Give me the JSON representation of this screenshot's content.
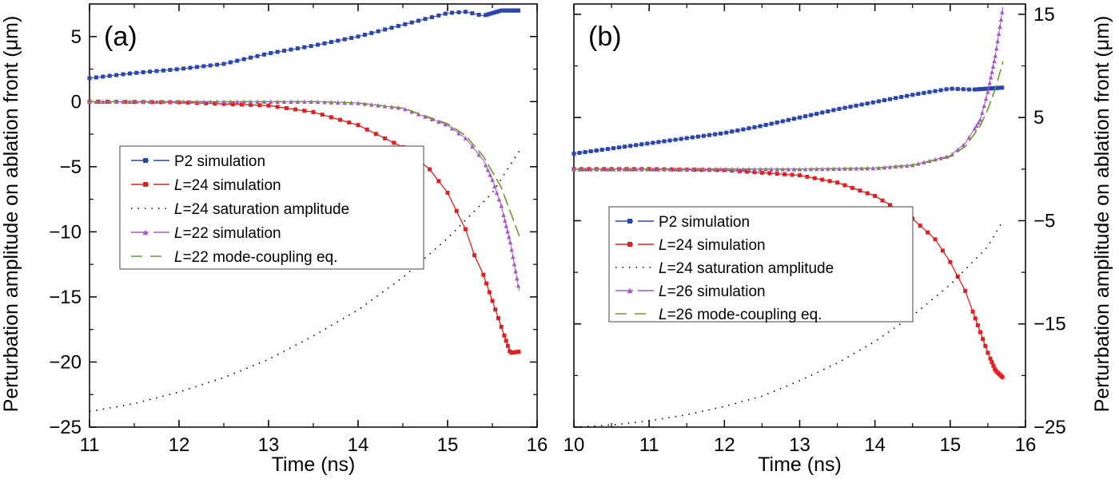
{
  "figure": {
    "ylabel_left": "Perturbation amplitude on ablation front (μm)",
    "ylabel_right": "Perturbation amplitude on ablation front (μm)"
  },
  "chart_data": [
    {
      "type": "line",
      "panel_label": "(a)",
      "xlabel": "Time (ns)",
      "xlim": [
        11,
        16
      ],
      "ylim": [
        -25,
        7.5
      ],
      "xticks": [
        11,
        12,
        13,
        14,
        15,
        16
      ],
      "yticks": [
        5,
        0,
        -5,
        -10,
        -15,
        -20,
        -25
      ],
      "ytick_labels": [
        "5",
        "0",
        "−5",
        "−10",
        "−15",
        "−20",
        "−25"
      ],
      "y_axis_side": "left",
      "legend": "middle-left",
      "series": [
        {
          "name": "P2 simulation",
          "color": "#2b45b0",
          "style": "dash-square",
          "x": [
            11.0,
            11.5,
            12.0,
            12.5,
            13.0,
            13.5,
            14.0,
            14.5,
            15.0,
            15.2,
            15.4,
            15.6,
            15.8
          ],
          "y": [
            1.8,
            2.2,
            2.5,
            2.9,
            3.7,
            4.3,
            5.0,
            5.9,
            6.8,
            6.9,
            6.6,
            7.0,
            7.0
          ]
        },
        {
          "name": "L=24 simulation",
          "color": "#e02020",
          "style": "solid-square",
          "x": [
            11.0,
            12.0,
            13.0,
            13.5,
            14.0,
            14.5,
            14.8,
            15.0,
            15.2,
            15.3,
            15.4,
            15.5,
            15.6,
            15.7,
            15.8
          ],
          "y": [
            0.0,
            -0.05,
            -0.3,
            -0.8,
            -1.8,
            -3.5,
            -5.2,
            -7.0,
            -9.8,
            -11.8,
            -13.3,
            -15.3,
            -17.3,
            -19.3,
            -19.2
          ]
        },
        {
          "name": "L=24 saturation amplitude",
          "color": "#000000",
          "style": "dotted",
          "x": [
            11.0,
            11.5,
            12.0,
            12.5,
            13.0,
            13.5,
            14.0,
            14.5,
            15.0,
            15.5,
            15.8
          ],
          "y": [
            -23.8,
            -23.2,
            -22.3,
            -21.2,
            -19.8,
            -18.0,
            -16.0,
            -13.5,
            -10.5,
            -7.0,
            -3.8
          ]
        },
        {
          "name": "L=22 simulation",
          "color": "#a855c8",
          "style": "dash-triangle",
          "x": [
            11.0,
            12.0,
            13.0,
            13.5,
            14.0,
            14.5,
            15.0,
            15.2,
            15.4,
            15.5,
            15.6,
            15.7,
            15.8
          ],
          "y": [
            0.0,
            0.0,
            0.0,
            0.0,
            -0.1,
            -0.5,
            -1.8,
            -2.8,
            -4.5,
            -6.0,
            -8.0,
            -10.8,
            -14.5
          ]
        },
        {
          "name": "L=22 mode-coupling eq.",
          "color": "#6a9a2a",
          "style": "dashed",
          "x": [
            11.0,
            12.0,
            13.0,
            13.5,
            14.0,
            14.5,
            15.0,
            15.2,
            15.4,
            15.6,
            15.8
          ],
          "y": [
            0.0,
            0.0,
            0.0,
            0.0,
            -0.1,
            -0.5,
            -1.7,
            -2.6,
            -4.2,
            -6.6,
            -10.3
          ]
        }
      ]
    },
    {
      "type": "line",
      "panel_label": "(b)",
      "xlabel": "Time (ns)",
      "xlim": [
        10,
        16
      ],
      "ylim": [
        -25,
        16
      ],
      "xticks": [
        10,
        11,
        12,
        13,
        14,
        15,
        16
      ],
      "yticks": [
        15,
        5,
        -5,
        -15,
        -25
      ],
      "ytick_labels": [
        "15",
        "5",
        "−5",
        "−15",
        "−25"
      ],
      "y_axis_side": "right",
      "legend": "bottom-left",
      "series": [
        {
          "name": "P2 simulation",
          "color": "#2b45b0",
          "style": "dash-square",
          "x": [
            10.0,
            10.5,
            11.0,
            11.5,
            12.0,
            12.5,
            13.0,
            13.5,
            14.0,
            14.5,
            15.0,
            15.3,
            15.5,
            15.7
          ],
          "y": [
            1.5,
            2.0,
            2.5,
            3.0,
            3.5,
            4.2,
            5.0,
            5.8,
            6.5,
            7.2,
            7.8,
            7.7,
            7.8,
            7.9
          ]
        },
        {
          "name": "L=24 simulation",
          "color": "#e02020",
          "style": "solid-square",
          "x": [
            10.0,
            11.0,
            12.0,
            13.0,
            13.5,
            14.0,
            14.5,
            14.8,
            15.0,
            15.2,
            15.3,
            15.4,
            15.5,
            15.6,
            15.7
          ],
          "y": [
            0.0,
            0.0,
            -0.1,
            -0.6,
            -1.3,
            -2.6,
            -4.8,
            -6.8,
            -9.0,
            -11.8,
            -13.8,
            -15.8,
            -17.8,
            -19.5,
            -20.2
          ]
        },
        {
          "name": "L=24 saturation amplitude",
          "color": "#000000",
          "style": "dotted",
          "x": [
            10.0,
            10.5,
            11.0,
            11.5,
            12.0,
            12.5,
            13.0,
            13.5,
            14.0,
            14.5,
            15.0,
            15.5,
            15.7
          ],
          "y": [
            -25.0,
            -24.8,
            -24.4,
            -23.8,
            -23.0,
            -22.0,
            -20.5,
            -18.8,
            -16.7,
            -14.2,
            -11.2,
            -7.5,
            -5.0
          ]
        },
        {
          "name": "L=26 simulation",
          "color": "#a855c8",
          "style": "dash-triangle",
          "x": [
            10.0,
            12.0,
            13.0,
            14.0,
            14.5,
            15.0,
            15.2,
            15.4,
            15.5,
            15.6,
            15.7
          ],
          "y": [
            0.0,
            0.0,
            0.0,
            0.1,
            0.4,
            1.3,
            2.5,
            4.8,
            7.5,
            11.0,
            15.7
          ]
        },
        {
          "name": "L=26 mode-coupling eq.",
          "color": "#6a9a2a",
          "style": "dashed",
          "x": [
            10.0,
            12.0,
            13.0,
            14.0,
            14.5,
            15.0,
            15.2,
            15.4,
            15.5,
            15.6,
            15.7
          ],
          "y": [
            0.0,
            0.0,
            0.0,
            0.1,
            0.4,
            1.2,
            2.2,
            4.2,
            5.8,
            7.8,
            10.4
          ]
        }
      ]
    }
  ]
}
